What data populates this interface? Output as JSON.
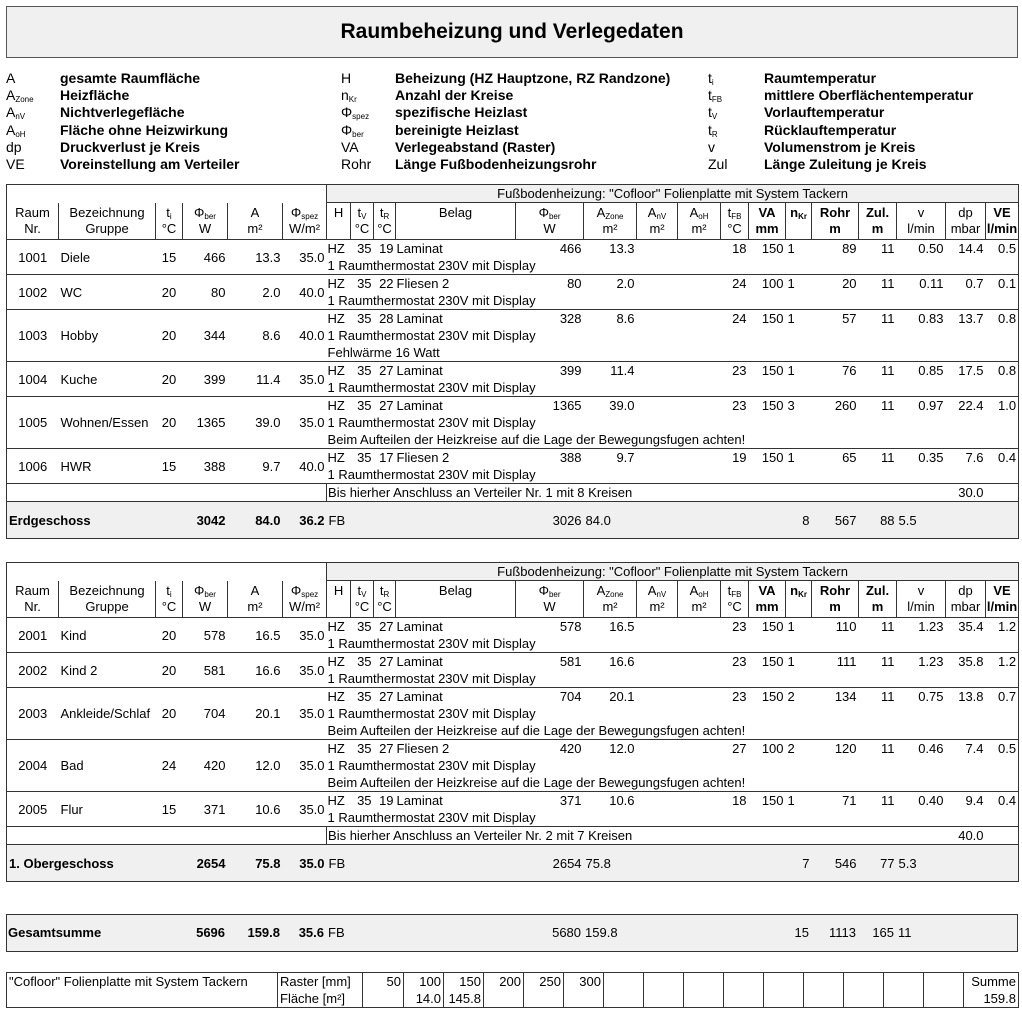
{
  "title": "Raumbeheizung und Verlegedaten",
  "legend": [
    [
      {
        "sym": "A",
        "sub": "",
        "desc": "gesamte Raumfläche"
      },
      {
        "sym": "H",
        "sub": "",
        "desc": "Beheizung (HZ Hauptzone, RZ Randzone)"
      },
      {
        "sym": "t",
        "sub": "i",
        "desc": "Raumtemperatur"
      }
    ],
    [
      {
        "sym": "A",
        "sub": "Zone",
        "desc": "Heizfläche"
      },
      {
        "sym": "n",
        "sub": "Kr",
        "desc": "Anzahl der Kreise"
      },
      {
        "sym": "t",
        "sub": "FB",
        "desc": "mittlere Oberflächentemperatur"
      }
    ],
    [
      {
        "sym": "A",
        "sub": "nV",
        "desc": "Nichtverlegefläche"
      },
      {
        "sym": "Φ",
        "sub": "spez",
        "desc": "spezifische Heizlast"
      },
      {
        "sym": "t",
        "sub": "V",
        "desc": "Vorlauftemperatur"
      }
    ],
    [
      {
        "sym": "A",
        "sub": "oH",
        "desc": "Fläche ohne Heizwirkung"
      },
      {
        "sym": "Φ",
        "sub": "ber",
        "desc": "bereinigte Heizlast"
      },
      {
        "sym": "t",
        "sub": "R",
        "desc": "Rücklauftemperatur"
      }
    ],
    [
      {
        "sym": "dp",
        "sub": "",
        "desc": "Druckverlust je Kreis"
      },
      {
        "sym": "VA",
        "sub": "",
        "desc": "Verlegeabstand (Raster)"
      },
      {
        "sym": "v",
        "sub": "",
        "desc": "Volumenstrom je Kreis"
      }
    ],
    [
      {
        "sym": "VE",
        "sub": "",
        "desc": "Voreinstellung am Verteiler"
      },
      {
        "sym": "Rohr",
        "sub": "",
        "desc": "Länge Fußbodenheizungsrohr"
      },
      {
        "sym": "Zul",
        "sub": "",
        "desc": "Länge Zuleitung je Kreis"
      }
    ]
  ],
  "group_header": "Fußbodenheizung: \"Cofloor\" Folienplatte mit System Tackern",
  "columns": [
    {
      "m": "Raum",
      "s": "",
      "u": "Nr."
    },
    {
      "m": "Bezeichnung",
      "s": "",
      "u": "Gruppe"
    },
    {
      "m": "t",
      "s": "i",
      "u": "°C"
    },
    {
      "m": "Φ",
      "s": "ber",
      "u": "W"
    },
    {
      "m": "A",
      "s": "",
      "u": "m²"
    },
    {
      "m": "Φ",
      "s": "spez",
      "u": "W/m²"
    },
    {
      "m": "H",
      "s": "",
      "u": ""
    },
    {
      "m": "t",
      "s": "V",
      "u": "°C"
    },
    {
      "m": "t",
      "s": "R",
      "u": "°C"
    },
    {
      "m": "Belag",
      "s": "",
      "u": ""
    },
    {
      "m": "Φ",
      "s": "ber",
      "u": "W"
    },
    {
      "m": "A",
      "s": "Zone",
      "u": "m²"
    },
    {
      "m": "A",
      "s": "nV",
      "u": "m²"
    },
    {
      "m": "A",
      "s": "oH",
      "u": "m²"
    },
    {
      "m": "t",
      "s": "FB",
      "u": "°C"
    },
    {
      "m": "VA",
      "s": "",
      "u": "mm",
      "b": true
    },
    {
      "m": "n",
      "s": "Kr",
      "u": "",
      "b": true
    },
    {
      "m": "Rohr",
      "s": "",
      "u": "m",
      "b": true
    },
    {
      "m": "Zul.",
      "s": "",
      "u": "m",
      "b": true
    },
    {
      "m": "v",
      "s": "",
      "u": "l/min"
    },
    {
      "m": "dp",
      "s": "",
      "u": "mbar"
    },
    {
      "m": "VE",
      "s": "",
      "u": "l/min",
      "b": true
    }
  ],
  "floors": [
    {
      "rooms": [
        {
          "cells": [
            "1001",
            "Diele",
            "15",
            "466",
            "13.3",
            "35.0",
            "HZ",
            "35",
            "19",
            "Laminat",
            "466",
            "13.3",
            "",
            "",
            "18",
            "150",
            "1",
            "89",
            "11",
            "0.50",
            "14.4",
            "0.5"
          ],
          "notes": [
            "1 Raumthermostat 230V mit Display"
          ]
        },
        {
          "cells": [
            "1002",
            "WC",
            "20",
            "80",
            "2.0",
            "40.0",
            "HZ",
            "35",
            "22",
            "Fliesen 2",
            "80",
            "2.0",
            "",
            "",
            "24",
            "100",
            "1",
            "20",
            "11",
            "0.11",
            "0.7",
            "0.1"
          ],
          "notes": [
            "1 Raumthermostat 230V mit Display"
          ]
        },
        {
          "cells": [
            "1003",
            "Hobby",
            "20",
            "344",
            "8.6",
            "40.0",
            "HZ",
            "35",
            "28",
            "Laminat",
            "328",
            "8.6",
            "",
            "",
            "24",
            "150",
            "1",
            "57",
            "11",
            "0.83",
            "13.7",
            "0.8"
          ],
          "notes": [
            "1 Raumthermostat 230V mit Display",
            "Fehlwärme 16 Watt"
          ]
        },
        {
          "cells": [
            "1004",
            "Kuche",
            "20",
            "399",
            "11.4",
            "35.0",
            "HZ",
            "35",
            "27",
            "Laminat",
            "399",
            "11.4",
            "",
            "",
            "23",
            "150",
            "1",
            "76",
            "11",
            "0.85",
            "17.5",
            "0.8"
          ],
          "notes": [
            "1 Raumthermostat 230V mit Display"
          ]
        },
        {
          "cells": [
            "1005",
            "Wohnen/Essen",
            "20",
            "1365",
            "39.0",
            "35.0",
            "HZ",
            "35",
            "27",
            "Laminat",
            "1365",
            "39.0",
            "",
            "",
            "23",
            "150",
            "3",
            "260",
            "11",
            "0.97",
            "22.4",
            "1.0"
          ],
          "notes": [
            "1 Raumthermostat 230V mit Display",
            "Beim Aufteilen der Heizkreise auf die Lage der Bewegungsfugen achten!"
          ]
        },
        {
          "cells": [
            "1006",
            "HWR",
            "15",
            "388",
            "9.7",
            "40.0",
            "HZ",
            "35",
            "17",
            "Fliesen 2",
            "388",
            "9.7",
            "",
            "",
            "19",
            "150",
            "1",
            "65",
            "11",
            "0.35",
            "7.6",
            "0.4"
          ],
          "notes": [
            "1 Raumthermostat 230V mit Display"
          ]
        }
      ],
      "verteiler": {
        "text": "Bis hierher Anschluss an Verteiler Nr. 1 mit 8 Kreisen",
        "dp": "30.0"
      },
      "summary": {
        "name": "Erdgeschoss",
        "phi": "3042",
        "a": "84.0",
        "spez": "36.2",
        "h": "FB",
        "phi2": "3026",
        "azone": "84.0",
        "nkr": "8",
        "rohr": "567",
        "zul": "88",
        "v": "5.5"
      }
    },
    {
      "rooms": [
        {
          "cells": [
            "2001",
            "Kind",
            "20",
            "578",
            "16.5",
            "35.0",
            "HZ",
            "35",
            "27",
            "Laminat",
            "578",
            "16.5",
            "",
            "",
            "23",
            "150",
            "1",
            "110",
            "11",
            "1.23",
            "35.4",
            "1.2"
          ],
          "notes": [
            "1 Raumthermostat 230V mit Display"
          ]
        },
        {
          "cells": [
            "2002",
            "Kind 2",
            "20",
            "581",
            "16.6",
            "35.0",
            "HZ",
            "35",
            "27",
            "Laminat",
            "581",
            "16.6",
            "",
            "",
            "23",
            "150",
            "1",
            "111",
            "11",
            "1.23",
            "35.8",
            "1.2"
          ],
          "notes": [
            "1 Raumthermostat 230V mit Display"
          ]
        },
        {
          "cells": [
            "2003",
            "Ankleide/Schlaf",
            "20",
            "704",
            "20.1",
            "35.0",
            "HZ",
            "35",
            "27",
            "Laminat",
            "704",
            "20.1",
            "",
            "",
            "23",
            "150",
            "2",
            "134",
            "11",
            "0.75",
            "13.8",
            "0.7"
          ],
          "notes": [
            "1 Raumthermostat 230V mit Display",
            "Beim Aufteilen der Heizkreise auf die Lage der Bewegungsfugen achten!"
          ]
        },
        {
          "cells": [
            "2004",
            "Bad",
            "24",
            "420",
            "12.0",
            "35.0",
            "HZ",
            "35",
            "27",
            "Fliesen 2",
            "420",
            "12.0",
            "",
            "",
            "27",
            "100",
            "2",
            "120",
            "11",
            "0.46",
            "7.4",
            "0.5"
          ],
          "notes": [
            "1 Raumthermostat 230V mit Display",
            "Beim Aufteilen der Heizkreise auf die Lage der Bewegungsfugen achten!"
          ]
        },
        {
          "cells": [
            "2005",
            "Flur",
            "15",
            "371",
            "10.6",
            "35.0",
            "HZ",
            "35",
            "19",
            "Laminat",
            "371",
            "10.6",
            "",
            "",
            "18",
            "150",
            "1",
            "71",
            "11",
            "0.40",
            "9.4",
            "0.4"
          ],
          "notes": [
            "1 Raumthermostat 230V mit Display"
          ]
        }
      ],
      "verteiler": {
        "text": "Bis hierher Anschluss an Verteiler Nr. 2 mit 7 Kreisen",
        "dp": "40.0"
      },
      "summary": {
        "name": "1. Obergeschoss",
        "phi": "2654",
        "a": "75.8",
        "spez": "35.0",
        "h": "FB",
        "phi2": "2654",
        "azone": "75.8",
        "nkr": "7",
        "rohr": "546",
        "zul": "77",
        "v": "5.3"
      }
    }
  ],
  "total": {
    "name": "Gesamtsumme",
    "phi": "5696",
    "a": "159.8",
    "spez": "35.6",
    "h": "FB",
    "phi2": "5680",
    "azone": "159.8",
    "nkr": "15",
    "rohr": "1113",
    "zul": "165",
    "v": "11"
  },
  "raster_table": {
    "label": "\"Cofloor\" Folienplatte mit System Tackern",
    "raster_label": "Raster [mm]",
    "flaeche_label": "Fläche [m²]",
    "raster": [
      "50",
      "100",
      "150",
      "200",
      "250",
      "300",
      "",
      "",
      "",
      "",
      "",
      "",
      "",
      "",
      ""
    ],
    "flaeche": [
      "",
      "14.0",
      "145.8",
      "",
      "",
      "",
      "",
      "",
      "",
      "",
      "",
      "",
      "",
      "",
      ""
    ],
    "summe_label": "Summe",
    "summe": "159.8"
  }
}
